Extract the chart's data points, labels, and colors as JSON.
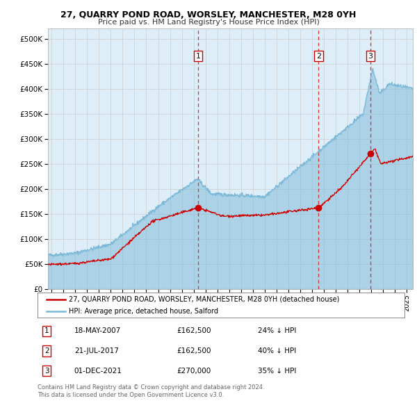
{
  "title": "27, QUARRY POND ROAD, WORSLEY, MANCHESTER, M28 0YH",
  "subtitle": "Price paid vs. HM Land Registry's House Price Index (HPI)",
  "hpi_color": "#7bb8d8",
  "hpi_fill_color": "#ddeef8",
  "price_color": "#cc0000",
  "sale_marker_color": "#cc0000",
  "dashed_line_color": "#dd3333",
  "background_color": "#ffffff",
  "grid_color": "#cccccc",
  "ylim": [
    0,
    520000
  ],
  "xlim_start": 1994.7,
  "xlim_end": 2025.5,
  "yticks": [
    0,
    50000,
    100000,
    150000,
    200000,
    250000,
    300000,
    350000,
    400000,
    450000,
    500000
  ],
  "xticks": [
    1995,
    1996,
    1997,
    1998,
    1999,
    2000,
    2001,
    2002,
    2003,
    2004,
    2005,
    2006,
    2007,
    2008,
    2009,
    2010,
    2011,
    2012,
    2013,
    2014,
    2015,
    2016,
    2017,
    2018,
    2019,
    2020,
    2021,
    2022,
    2023,
    2024,
    2025
  ],
  "sales": [
    {
      "date_num": 2007.37,
      "price": 162500,
      "label": "1"
    },
    {
      "date_num": 2017.55,
      "price": 162500,
      "label": "2"
    },
    {
      "date_num": 2021.92,
      "price": 270000,
      "label": "3"
    }
  ],
  "legend_entries": [
    {
      "label": "27, QUARRY POND ROAD, WORSLEY, MANCHESTER, M28 0YH (detached house)",
      "color": "#cc0000"
    },
    {
      "label": "HPI: Average price, detached house, Salford",
      "color": "#7bb8d8"
    }
  ],
  "table_rows": [
    {
      "num": "1",
      "date": "18-MAY-2007",
      "price": "£162,500",
      "note": "24% ↓ HPI"
    },
    {
      "num": "2",
      "date": "21-JUL-2017",
      "price": "£162,500",
      "note": "40% ↓ HPI"
    },
    {
      "num": "3",
      "date": "01-DEC-2021",
      "price": "£270,000",
      "note": "35% ↓ HPI"
    }
  ],
  "footer": "Contains HM Land Registry data © Crown copyright and database right 2024.\nThis data is licensed under the Open Government Licence v3.0."
}
